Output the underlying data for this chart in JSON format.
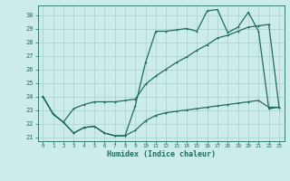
{
  "title": "",
  "xlabel": "Humidex (Indice chaleur)",
  "bg_color": "#ccecea",
  "grid_color": "#aacfcd",
  "line_color": "#1f6b5e",
  "xlim": [
    -0.5,
    23.5
  ],
  "ylim": [
    20.7,
    30.7
  ],
  "yticks": [
    21,
    22,
    23,
    24,
    25,
    26,
    27,
    28,
    29,
    30
  ],
  "xticks": [
    0,
    1,
    2,
    3,
    4,
    5,
    6,
    7,
    8,
    9,
    10,
    11,
    12,
    13,
    14,
    15,
    16,
    17,
    18,
    19,
    20,
    21,
    22,
    23
  ],
  "line1_x": [
    0,
    1,
    2,
    3,
    4,
    5,
    6,
    7,
    8,
    9,
    10,
    11,
    12,
    13,
    14,
    15,
    16,
    17,
    18,
    19,
    20,
    21,
    22,
    23
  ],
  "line1_y": [
    24.0,
    22.7,
    22.1,
    21.3,
    21.7,
    21.8,
    21.3,
    21.1,
    21.1,
    23.3,
    26.5,
    28.8,
    28.8,
    28.9,
    29.0,
    28.8,
    30.3,
    30.4,
    28.7,
    29.1,
    30.2,
    28.8,
    23.1,
    23.2
  ],
  "line2_x": [
    0,
    1,
    2,
    3,
    4,
    5,
    6,
    7,
    8,
    9,
    10,
    11,
    12,
    13,
    14,
    15,
    16,
    17,
    18,
    19,
    20,
    21,
    22,
    23
  ],
  "line2_y": [
    24.0,
    22.7,
    22.1,
    23.1,
    23.4,
    23.6,
    23.6,
    23.6,
    23.7,
    23.8,
    24.9,
    25.5,
    26.0,
    26.5,
    26.9,
    27.4,
    27.8,
    28.3,
    28.5,
    28.8,
    29.1,
    29.2,
    29.3,
    23.2
  ],
  "line3_x": [
    0,
    1,
    2,
    3,
    4,
    5,
    6,
    7,
    8,
    9,
    10,
    11,
    12,
    13,
    14,
    15,
    16,
    17,
    18,
    19,
    20,
    21,
    22,
    23
  ],
  "line3_y": [
    24.0,
    22.7,
    22.1,
    21.3,
    21.7,
    21.8,
    21.3,
    21.1,
    21.1,
    21.5,
    22.2,
    22.6,
    22.8,
    22.9,
    23.0,
    23.1,
    23.2,
    23.3,
    23.4,
    23.5,
    23.6,
    23.7,
    23.2,
    23.2
  ]
}
